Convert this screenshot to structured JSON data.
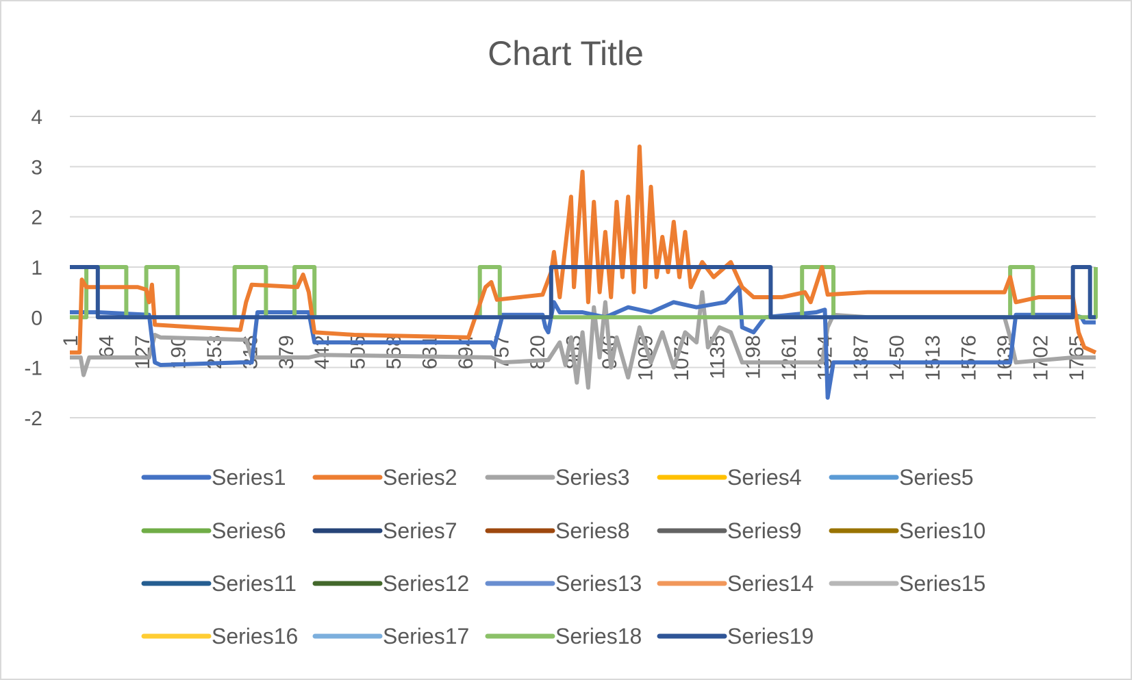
{
  "chart_data": {
    "type": "line",
    "title": "Chart Title",
    "x": {
      "min": 1,
      "max": 1800,
      "tick_labels": [
        "1",
        "64",
        "127",
        "190",
        "253",
        "316",
        "379",
        "442",
        "505",
        "568",
        "631",
        "694",
        "757",
        "820",
        "883",
        "946",
        "1009",
        "1072",
        "1135",
        "1198",
        "1261",
        "1324",
        "1387",
        "1450",
        "1513",
        "1576",
        "1639",
        "1702",
        "1765"
      ]
    },
    "y": {
      "min": -2,
      "max": 4,
      "ticks": [
        "-2",
        "-1",
        "0",
        "1",
        "2",
        "3",
        "4"
      ],
      "grid": true
    },
    "legend_position": "bottom",
    "series": [
      {
        "name": "Series1",
        "color": "#4472C4",
        "points": [
          [
            1,
            0.1
          ],
          [
            50,
            0.1
          ],
          [
            140,
            0.05
          ],
          [
            150,
            -0.9
          ],
          [
            160,
            -0.95
          ],
          [
            300,
            -0.9
          ],
          [
            320,
            -0.9
          ],
          [
            330,
            0.1
          ],
          [
            420,
            0.1
          ],
          [
            430,
            -0.5
          ],
          [
            700,
            -0.5
          ],
          [
            740,
            -0.5
          ],
          [
            745,
            -0.6
          ],
          [
            760,
            0.05
          ],
          [
            830,
            0.05
          ],
          [
            835,
            -0.2
          ],
          [
            840,
            -0.3
          ],
          [
            850,
            0.3
          ],
          [
            860,
            0.1
          ],
          [
            900,
            0.1
          ],
          [
            940,
            0.0
          ],
          [
            980,
            0.2
          ],
          [
            1020,
            0.1
          ],
          [
            1060,
            0.3
          ],
          [
            1100,
            0.2
          ],
          [
            1150,
            0.3
          ],
          [
            1175,
            0.6
          ],
          [
            1180,
            -0.2
          ],
          [
            1200,
            -0.3
          ],
          [
            1220,
            0.0
          ],
          [
            1310,
            0.1
          ],
          [
            1325,
            0.15
          ],
          [
            1330,
            -1.6
          ],
          [
            1340,
            -0.9
          ],
          [
            1500,
            -0.9
          ],
          [
            1640,
            -0.9
          ],
          [
            1650,
            -0.9
          ],
          [
            1660,
            0.05
          ],
          [
            1720,
            0.05
          ],
          [
            1760,
            0.05
          ],
          [
            1775,
            0.0
          ],
          [
            1780,
            -0.1
          ],
          [
            1800,
            -0.1
          ]
        ]
      },
      {
        "name": "Series2",
        "color": "#ED7D31",
        "points": [
          [
            1,
            -0.7
          ],
          [
            18,
            -0.7
          ],
          [
            22,
            0.75
          ],
          [
            30,
            0.6
          ],
          [
            120,
            0.6
          ],
          [
            135,
            0.55
          ],
          [
            140,
            0.3
          ],
          [
            145,
            0.65
          ],
          [
            150,
            -0.15
          ],
          [
            300,
            -0.25
          ],
          [
            310,
            0.3
          ],
          [
            320,
            0.65
          ],
          [
            400,
            0.6
          ],
          [
            410,
            0.85
          ],
          [
            420,
            0.5
          ],
          [
            430,
            -0.3
          ],
          [
            500,
            -0.35
          ],
          [
            700,
            -0.4
          ],
          [
            730,
            0.6
          ],
          [
            740,
            0.7
          ],
          [
            750,
            0.35
          ],
          [
            830,
            0.45
          ],
          [
            845,
            0.9
          ],
          [
            850,
            1.3
          ],
          [
            860,
            0.4
          ],
          [
            880,
            2.4
          ],
          [
            885,
            0.6
          ],
          [
            900,
            2.9
          ],
          [
            910,
            0.3
          ],
          [
            920,
            2.3
          ],
          [
            930,
            0.5
          ],
          [
            940,
            1.7
          ],
          [
            950,
            0.4
          ],
          [
            960,
            2.3
          ],
          [
            970,
            0.8
          ],
          [
            980,
            2.4
          ],
          [
            990,
            0.5
          ],
          [
            1000,
            3.4
          ],
          [
            1010,
            0.6
          ],
          [
            1020,
            2.6
          ],
          [
            1030,
            0.8
          ],
          [
            1040,
            1.6
          ],
          [
            1050,
            0.9
          ],
          [
            1060,
            1.9
          ],
          [
            1070,
            0.8
          ],
          [
            1080,
            1.7
          ],
          [
            1090,
            0.6
          ],
          [
            1110,
            1.1
          ],
          [
            1130,
            0.8
          ],
          [
            1160,
            1.1
          ],
          [
            1180,
            0.6
          ],
          [
            1200,
            0.4
          ],
          [
            1250,
            0.4
          ],
          [
            1290,
            0.5
          ],
          [
            1300,
            0.3
          ],
          [
            1320,
            1.0
          ],
          [
            1330,
            0.45
          ],
          [
            1400,
            0.5
          ],
          [
            1640,
            0.5
          ],
          [
            1650,
            0.8
          ],
          [
            1660,
            0.3
          ],
          [
            1700,
            0.4
          ],
          [
            1760,
            0.4
          ],
          [
            1770,
            -0.3
          ],
          [
            1780,
            -0.6
          ],
          [
            1800,
            -0.7
          ]
        ]
      },
      {
        "name": "Series3",
        "color": "#A5A5A5",
        "points": [
          [
            1,
            -0.8
          ],
          [
            20,
            -0.8
          ],
          [
            25,
            -1.15
          ],
          [
            35,
            -0.8
          ],
          [
            140,
            -0.8
          ],
          [
            150,
            -0.35
          ],
          [
            160,
            -0.4
          ],
          [
            310,
            -0.45
          ],
          [
            320,
            -0.8
          ],
          [
            420,
            -0.8
          ],
          [
            440,
            -0.75
          ],
          [
            740,
            -0.8
          ],
          [
            760,
            -0.9
          ],
          [
            840,
            -0.85
          ],
          [
            860,
            -0.5
          ],
          [
            870,
            -0.95
          ],
          [
            880,
            -0.4
          ],
          [
            890,
            -1.3
          ],
          [
            900,
            -0.3
          ],
          [
            910,
            -1.4
          ],
          [
            920,
            0.2
          ],
          [
            930,
            -0.8
          ],
          [
            940,
            0.3
          ],
          [
            950,
            -1.0
          ],
          [
            960,
            -0.4
          ],
          [
            980,
            -1.2
          ],
          [
            1000,
            -0.2
          ],
          [
            1020,
            -0.9
          ],
          [
            1040,
            -0.3
          ],
          [
            1060,
            -1.0
          ],
          [
            1080,
            -0.3
          ],
          [
            1100,
            -0.5
          ],
          [
            1110,
            0.5
          ],
          [
            1120,
            -0.6
          ],
          [
            1140,
            -0.2
          ],
          [
            1160,
            -0.3
          ],
          [
            1180,
            -0.9
          ],
          [
            1320,
            -0.9
          ],
          [
            1330,
            -0.2
          ],
          [
            1340,
            0.05
          ],
          [
            1400,
            0.0
          ],
          [
            1640,
            0.0
          ],
          [
            1650,
            -0.4
          ],
          [
            1660,
            -0.9
          ],
          [
            1760,
            -0.8
          ],
          [
            1800,
            -0.8
          ]
        ]
      },
      {
        "name": "Series4",
        "color": "#FFC000",
        "points": []
      },
      {
        "name": "Series5",
        "color": "#5B9BD5",
        "points": []
      },
      {
        "name": "Series6",
        "color": "#70AD47",
        "points": []
      },
      {
        "name": "Series7",
        "color": "#264478",
        "points": []
      },
      {
        "name": "Series8",
        "color": "#9E480E",
        "points": [
          [
            135,
            1
          ],
          [
            190,
            1
          ]
        ]
      },
      {
        "name": "Series9",
        "color": "#636363",
        "points": [
          [
            290,
            1
          ],
          [
            345,
            1
          ]
        ]
      },
      {
        "name": "Series10",
        "color": "#997300",
        "points": [
          [
            395,
            1
          ],
          [
            430,
            1
          ]
        ]
      },
      {
        "name": "Series11",
        "color": "#255E91",
        "points": [
          [
            720,
            1
          ],
          [
            755,
            1
          ]
        ]
      },
      {
        "name": "Series12",
        "color": "#43682B",
        "points": []
      },
      {
        "name": "Series13",
        "color": "#698ED0",
        "points": []
      },
      {
        "name": "Series14",
        "color": "#F1975A",
        "points": [
          [
            1305,
            1
          ],
          [
            1340,
            1
          ]
        ]
      },
      {
        "name": "Series15",
        "color": "#B7B7B7",
        "points": [
          [
            1650,
            1
          ],
          [
            1690,
            1
          ]
        ]
      },
      {
        "name": "Series16",
        "color": "#FFCD33",
        "points": []
      },
      {
        "name": "Series17",
        "color": "#7CAFDD",
        "points": []
      },
      {
        "name": "Series18",
        "color": "#8BC168",
        "points": [
          [
            1,
            0
          ],
          [
            30,
            0
          ],
          [
            30,
            1
          ],
          [
            100,
            1
          ],
          [
            100,
            0
          ],
          [
            135,
            0
          ],
          [
            135,
            1
          ],
          [
            190,
            1
          ],
          [
            190,
            0
          ],
          [
            290,
            0
          ],
          [
            290,
            1
          ],
          [
            345,
            1
          ],
          [
            345,
            0
          ],
          [
            395,
            0
          ],
          [
            395,
            1
          ],
          [
            430,
            1
          ],
          [
            430,
            0
          ],
          [
            720,
            0
          ],
          [
            720,
            1
          ],
          [
            755,
            1
          ],
          [
            755,
            0
          ],
          [
            1285,
            0
          ],
          [
            1285,
            1
          ],
          [
            1340,
            1
          ],
          [
            1340,
            0
          ],
          [
            1650,
            0
          ],
          [
            1650,
            1
          ],
          [
            1690,
            1
          ],
          [
            1690,
            0
          ],
          [
            1800,
            0
          ],
          [
            1800,
            1
          ]
        ]
      },
      {
        "name": "Series19",
        "color": "#2F5597",
        "points": [
          [
            1,
            1
          ],
          [
            50,
            1
          ],
          [
            50,
            0
          ],
          [
            845,
            0
          ],
          [
            845,
            1
          ],
          [
            1230,
            1
          ],
          [
            1230,
            0
          ],
          [
            1760,
            0
          ],
          [
            1760,
            1
          ],
          [
            1790,
            1
          ],
          [
            1790,
            0
          ],
          [
            1800,
            0
          ]
        ]
      }
    ]
  }
}
